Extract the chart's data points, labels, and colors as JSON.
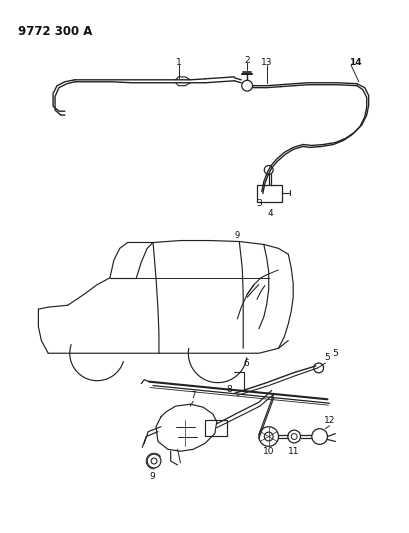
{
  "title": "9772 300 A",
  "bg_color": "#ffffff",
  "line_color": "#222222",
  "text_color": "#111111",
  "title_fontsize": 8.5,
  "label_fontsize": 6.5,
  "fig_width": 4.1,
  "fig_height": 5.33,
  "dpi": 100
}
